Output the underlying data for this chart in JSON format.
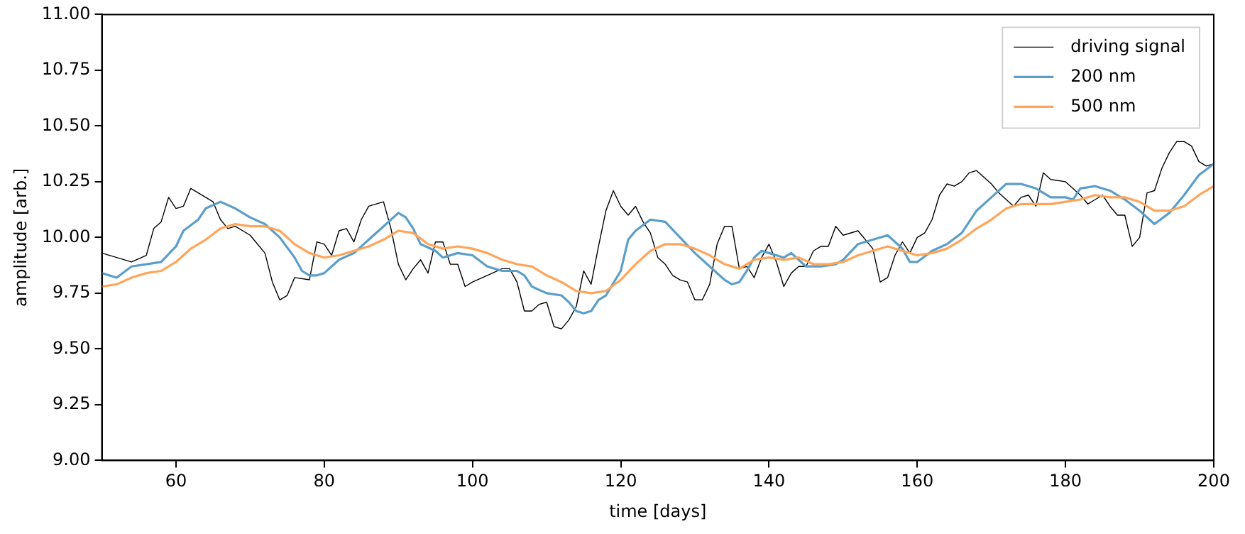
{
  "chart_data": {
    "type": "line",
    "xlabel": "time [days]",
    "ylabel": "amplitude [arb.]",
    "xlim": [
      50,
      200
    ],
    "xticks": [
      60,
      80,
      100,
      120,
      140,
      160,
      180,
      200
    ],
    "ylim": [
      9.0,
      11.0
    ],
    "yticks": [
      {
        "value": 9.0,
        "label": "9.00"
      },
      {
        "value": 9.25,
        "label": "9.25"
      },
      {
        "value": 9.5,
        "label": "9.50"
      },
      {
        "value": 9.75,
        "label": "9.75"
      },
      {
        "value": 10.0,
        "label": "10.00"
      },
      {
        "value": 10.25,
        "label": "10.25"
      },
      {
        "value": 10.5,
        "label": "10.50"
      },
      {
        "value": 10.75,
        "label": "10.75"
      },
      {
        "value": 11.0,
        "label": "11.00"
      }
    ],
    "grid": false,
    "legend": "top right",
    "marker": "none",
    "line_style": "solid",
    "series": [
      {
        "name": "driving signal",
        "color": "#000000",
        "x": [
          50,
          52,
          54,
          56,
          57,
          58,
          59,
          60,
          61,
          62,
          63,
          65,
          66,
          67,
          68,
          70,
          71,
          72,
          73,
          74,
          75,
          76,
          78,
          79,
          80,
          81,
          82,
          83,
          84,
          85,
          86,
          88,
          89,
          90,
          91,
          92,
          93,
          94,
          95,
          96,
          97,
          98,
          99,
          100,
          102,
          104,
          105,
          106,
          107,
          108,
          109,
          110,
          111,
          112,
          113,
          114,
          115,
          116,
          117,
          118,
          119,
          120,
          121,
          122,
          123,
          124,
          125,
          126,
          127,
          128,
          129,
          130,
          131,
          132,
          133,
          134,
          135,
          136,
          137,
          138,
          139,
          140,
          141,
          142,
          143,
          144,
          145,
          146,
          147,
          148,
          149,
          150,
          152,
          154,
          155,
          156,
          157,
          158,
          159,
          160,
          161,
          162,
          163,
          164,
          165,
          166,
          167,
          168,
          170,
          171,
          172,
          173,
          174,
          175,
          176,
          177,
          178,
          180,
          182,
          183,
          184,
          185,
          186,
          187,
          188,
          189,
          190,
          191,
          192,
          193,
          194,
          195,
          196,
          197,
          198,
          199,
          200
        ],
        "values": [
          9.93,
          9.91,
          9.89,
          9.92,
          10.04,
          10.07,
          10.18,
          10.13,
          10.14,
          10.22,
          10.2,
          10.16,
          10.08,
          10.04,
          10.05,
          10.01,
          9.97,
          9.93,
          9.8,
          9.72,
          9.74,
          9.82,
          9.81,
          9.98,
          9.97,
          9.92,
          10.03,
          10.04,
          9.98,
          10.08,
          10.14,
          10.16,
          10.04,
          9.88,
          9.81,
          9.86,
          9.9,
          9.84,
          9.98,
          9.98,
          9.88,
          9.88,
          9.78,
          9.8,
          9.83,
          9.86,
          9.86,
          9.8,
          9.67,
          9.67,
          9.7,
          9.71,
          9.6,
          9.59,
          9.63,
          9.69,
          9.85,
          9.79,
          9.96,
          10.12,
          10.21,
          10.14,
          10.1,
          10.14,
          10.07,
          10.02,
          9.91,
          9.88,
          9.83,
          9.81,
          9.8,
          9.72,
          9.72,
          9.79,
          9.97,
          10.05,
          10.05,
          9.86,
          9.87,
          9.82,
          9.91,
          9.97,
          9.89,
          9.78,
          9.84,
          9.87,
          9.87,
          9.94,
          9.96,
          9.96,
          10.05,
          10.01,
          10.03,
          9.95,
          9.8,
          9.82,
          9.92,
          9.98,
          9.93,
          10.0,
          10.02,
          10.08,
          10.19,
          10.24,
          10.23,
          10.25,
          10.29,
          10.3,
          10.24,
          10.2,
          10.17,
          10.14,
          10.18,
          10.19,
          10.14,
          10.29,
          10.26,
          10.25,
          10.19,
          10.15,
          10.17,
          10.19,
          10.14,
          10.1,
          10.1,
          9.96,
          10.0,
          10.2,
          10.21,
          10.31,
          10.38,
          10.43,
          10.43,
          10.41,
          10.34,
          10.32,
          10.33
        ]
      },
      {
        "name": "200 nm",
        "color": "#5b9ec9",
        "x": [
          50,
          52,
          54,
          56,
          58,
          60,
          61,
          63,
          64,
          66,
          68,
          70,
          72,
          74,
          76,
          77,
          78,
          79,
          80,
          82,
          84,
          86,
          88,
          90,
          91,
          92,
          93,
          95,
          96,
          98,
          100,
          102,
          104,
          106,
          107,
          108,
          110,
          112,
          113,
          114,
          115,
          116,
          117,
          118,
          120,
          121,
          122,
          124,
          126,
          128,
          130,
          132,
          134,
          135,
          136,
          137,
          138,
          139,
          140,
          142,
          143,
          144,
          145,
          147,
          149,
          150,
          152,
          154,
          156,
          158,
          159,
          160,
          162,
          164,
          166,
          168,
          170,
          172,
          174,
          176,
          178,
          180,
          181,
          182,
          184,
          186,
          188,
          190,
          192,
          194,
          196,
          198,
          200
        ],
        "values": [
          9.84,
          9.82,
          9.87,
          9.88,
          9.89,
          9.96,
          10.03,
          10.08,
          10.13,
          10.16,
          10.13,
          10.09,
          10.06,
          10.0,
          9.91,
          9.85,
          9.83,
          9.83,
          9.84,
          9.9,
          9.93,
          9.99,
          10.05,
          10.11,
          10.09,
          10.04,
          9.97,
          9.94,
          9.91,
          9.93,
          9.92,
          9.87,
          9.85,
          9.85,
          9.83,
          9.78,
          9.75,
          9.74,
          9.71,
          9.67,
          9.66,
          9.67,
          9.72,
          9.74,
          9.85,
          9.99,
          10.03,
          10.08,
          10.07,
          10.0,
          9.93,
          9.87,
          9.81,
          9.79,
          9.8,
          9.85,
          9.91,
          9.94,
          9.93,
          9.91,
          9.93,
          9.9,
          9.87,
          9.87,
          9.88,
          9.9,
          9.97,
          9.99,
          10.01,
          9.95,
          9.89,
          9.89,
          9.94,
          9.97,
          10.02,
          10.12,
          10.18,
          10.24,
          10.24,
          10.22,
          10.18,
          10.18,
          10.17,
          10.22,
          10.23,
          10.21,
          10.17,
          10.12,
          10.06,
          10.11,
          10.19,
          10.28,
          10.33
        ]
      },
      {
        "name": "500 nm",
        "color": "#ffa55a",
        "x": [
          50,
          52,
          54,
          56,
          58,
          60,
          62,
          64,
          66,
          68,
          70,
          72,
          74,
          76,
          78,
          80,
          82,
          84,
          86,
          88,
          90,
          92,
          94,
          96,
          98,
          100,
          102,
          104,
          106,
          108,
          110,
          112,
          114,
          116,
          118,
          120,
          122,
          124,
          126,
          128,
          130,
          132,
          134,
          136,
          138,
          140,
          142,
          144,
          146,
          148,
          150,
          152,
          154,
          156,
          158,
          160,
          162,
          164,
          166,
          168,
          170,
          172,
          174,
          176,
          178,
          180,
          182,
          184,
          186,
          188,
          190,
          192,
          194,
          196,
          198,
          200
        ],
        "values": [
          9.78,
          9.79,
          9.82,
          9.84,
          9.85,
          9.89,
          9.95,
          9.99,
          10.04,
          10.06,
          10.05,
          10.05,
          10.03,
          9.97,
          9.93,
          9.91,
          9.92,
          9.94,
          9.96,
          9.99,
          10.03,
          10.02,
          9.97,
          9.95,
          9.96,
          9.95,
          9.93,
          9.9,
          9.88,
          9.87,
          9.83,
          9.8,
          9.76,
          9.75,
          9.76,
          9.81,
          9.88,
          9.94,
          9.97,
          9.97,
          9.95,
          9.92,
          9.88,
          9.86,
          9.9,
          9.91,
          9.9,
          9.91,
          9.88,
          9.88,
          9.89,
          9.92,
          9.94,
          9.96,
          9.94,
          9.92,
          9.93,
          9.95,
          9.99,
          10.04,
          10.08,
          10.13,
          10.15,
          10.15,
          10.15,
          10.16,
          10.17,
          10.19,
          10.18,
          10.18,
          10.16,
          10.12,
          10.12,
          10.14,
          10.19,
          10.23
        ]
      }
    ]
  }
}
